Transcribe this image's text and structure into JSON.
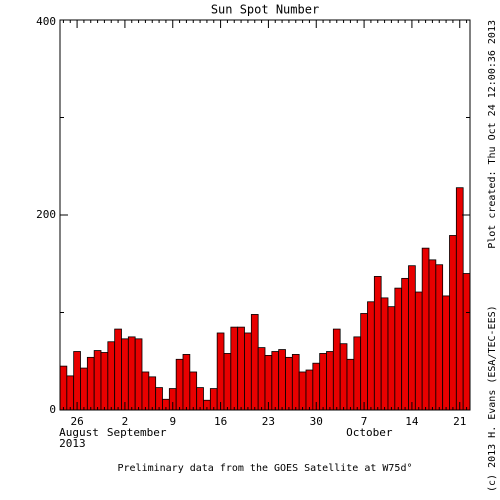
{
  "chart_data": {
    "type": "bar",
    "title": "Sun Spot Number",
    "categories": [
      null,
      null,
      "26",
      null,
      null,
      null,
      null,
      null,
      null,
      "2",
      null,
      null,
      null,
      null,
      null,
      null,
      "9",
      null,
      null,
      null,
      null,
      null,
      null,
      "16",
      null,
      null,
      null,
      null,
      null,
      null,
      "23",
      null,
      null,
      null,
      null,
      null,
      null,
      "30",
      null,
      null,
      null,
      null,
      null,
      null,
      "7",
      null,
      null,
      null,
      null,
      null,
      null,
      "14",
      null,
      null,
      null,
      null,
      null,
      null,
      "21",
      null
    ],
    "values": [
      45,
      35,
      60,
      43,
      54,
      61,
      59,
      70,
      83,
      73,
      75,
      73,
      39,
      34,
      23,
      11,
      22,
      52,
      57,
      39,
      23,
      10,
      22,
      79,
      58,
      85,
      85,
      79,
      98,
      64,
      56,
      60,
      62,
      54,
      57,
      39,
      41,
      48,
      58,
      60,
      83,
      68,
      52,
      75,
      99,
      111,
      137,
      115,
      106,
      125,
      135,
      148,
      121,
      166,
      154,
      149,
      117,
      179,
      228,
      140
    ],
    "color": "#e80000",
    "ylim": [
      0,
      400
    ],
    "yticks": [
      0,
      200,
      400
    ],
    "yminor": [
      100,
      300
    ],
    "month_labels": [
      {
        "label": "August",
        "year": "2013",
        "category": 2
      },
      {
        "label": "September",
        "category": 9
      },
      {
        "label": "October",
        "category": 44
      }
    ],
    "footer": "Preliminary data from the GOES Satellite at W75d°",
    "plot_created": "Plot created: Thu Oct 24 12:00:36 2013",
    "copyright": "(c) 2013 H. Evans (ESA/TEC-EES)"
  }
}
